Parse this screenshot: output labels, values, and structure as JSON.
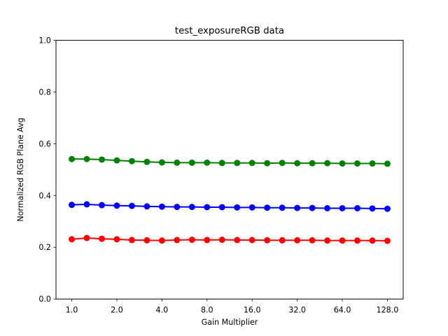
{
  "figure": {
    "background": "#ffffff"
  },
  "chart_data": {
    "type": "line",
    "title": "test_exposureRGB data",
    "xlabel": "Gain Multiplier",
    "ylabel": "Normalized RGB Plane Avg",
    "x_scale": "log2",
    "xlim": [
      0.7846,
      163.14
    ],
    "ylim": [
      0.0,
      1.0
    ],
    "x_ticks": [
      1,
      2,
      4,
      8,
      16,
      32,
      64,
      128
    ],
    "x_tick_labels": [
      "1.0",
      "2.0",
      "4.0",
      "8.0",
      "16.0",
      "32.0",
      "64.0",
      "128.0"
    ],
    "y_ticks": [
      0.0,
      0.2,
      0.4,
      0.6,
      0.8,
      1.0
    ],
    "y_tick_labels": [
      "0.0",
      "0.2",
      "0.4",
      "0.6",
      "0.8",
      "1.0"
    ],
    "grid": false,
    "legend": null,
    "marker": "o",
    "marker_size": 9,
    "line_width": 2,
    "x": [
      1.0,
      1.2599,
      1.5874,
      2.0,
      2.5198,
      3.1748,
      4.0,
      5.0397,
      6.3496,
      8.0,
      10.0794,
      12.699,
      16.0,
      20.1587,
      25.3984,
      32.0,
      40.3175,
      50.7968,
      64.0,
      80.6349,
      101.5937,
      128.0
    ],
    "series": [
      {
        "name": "green",
        "color": "#008000",
        "values": [
          0.541,
          0.541,
          0.539,
          0.536,
          0.533,
          0.53,
          0.528,
          0.527,
          0.527,
          0.527,
          0.526,
          0.526,
          0.526,
          0.525,
          0.526,
          0.525,
          0.525,
          0.525,
          0.524,
          0.524,
          0.524,
          0.523
        ]
      },
      {
        "name": "blue",
        "color": "#0000ff",
        "values": [
          0.364,
          0.366,
          0.363,
          0.361,
          0.36,
          0.358,
          0.357,
          0.356,
          0.356,
          0.355,
          0.355,
          0.354,
          0.354,
          0.353,
          0.353,
          0.352,
          0.352,
          0.351,
          0.351,
          0.351,
          0.35,
          0.349
        ]
      },
      {
        "name": "red",
        "color": "#ff0000",
        "values": [
          0.231,
          0.236,
          0.233,
          0.231,
          0.228,
          0.227,
          0.226,
          0.228,
          0.229,
          0.228,
          0.229,
          0.228,
          0.228,
          0.227,
          0.227,
          0.227,
          0.227,
          0.226,
          0.226,
          0.226,
          0.226,
          0.225
        ]
      }
    ]
  }
}
